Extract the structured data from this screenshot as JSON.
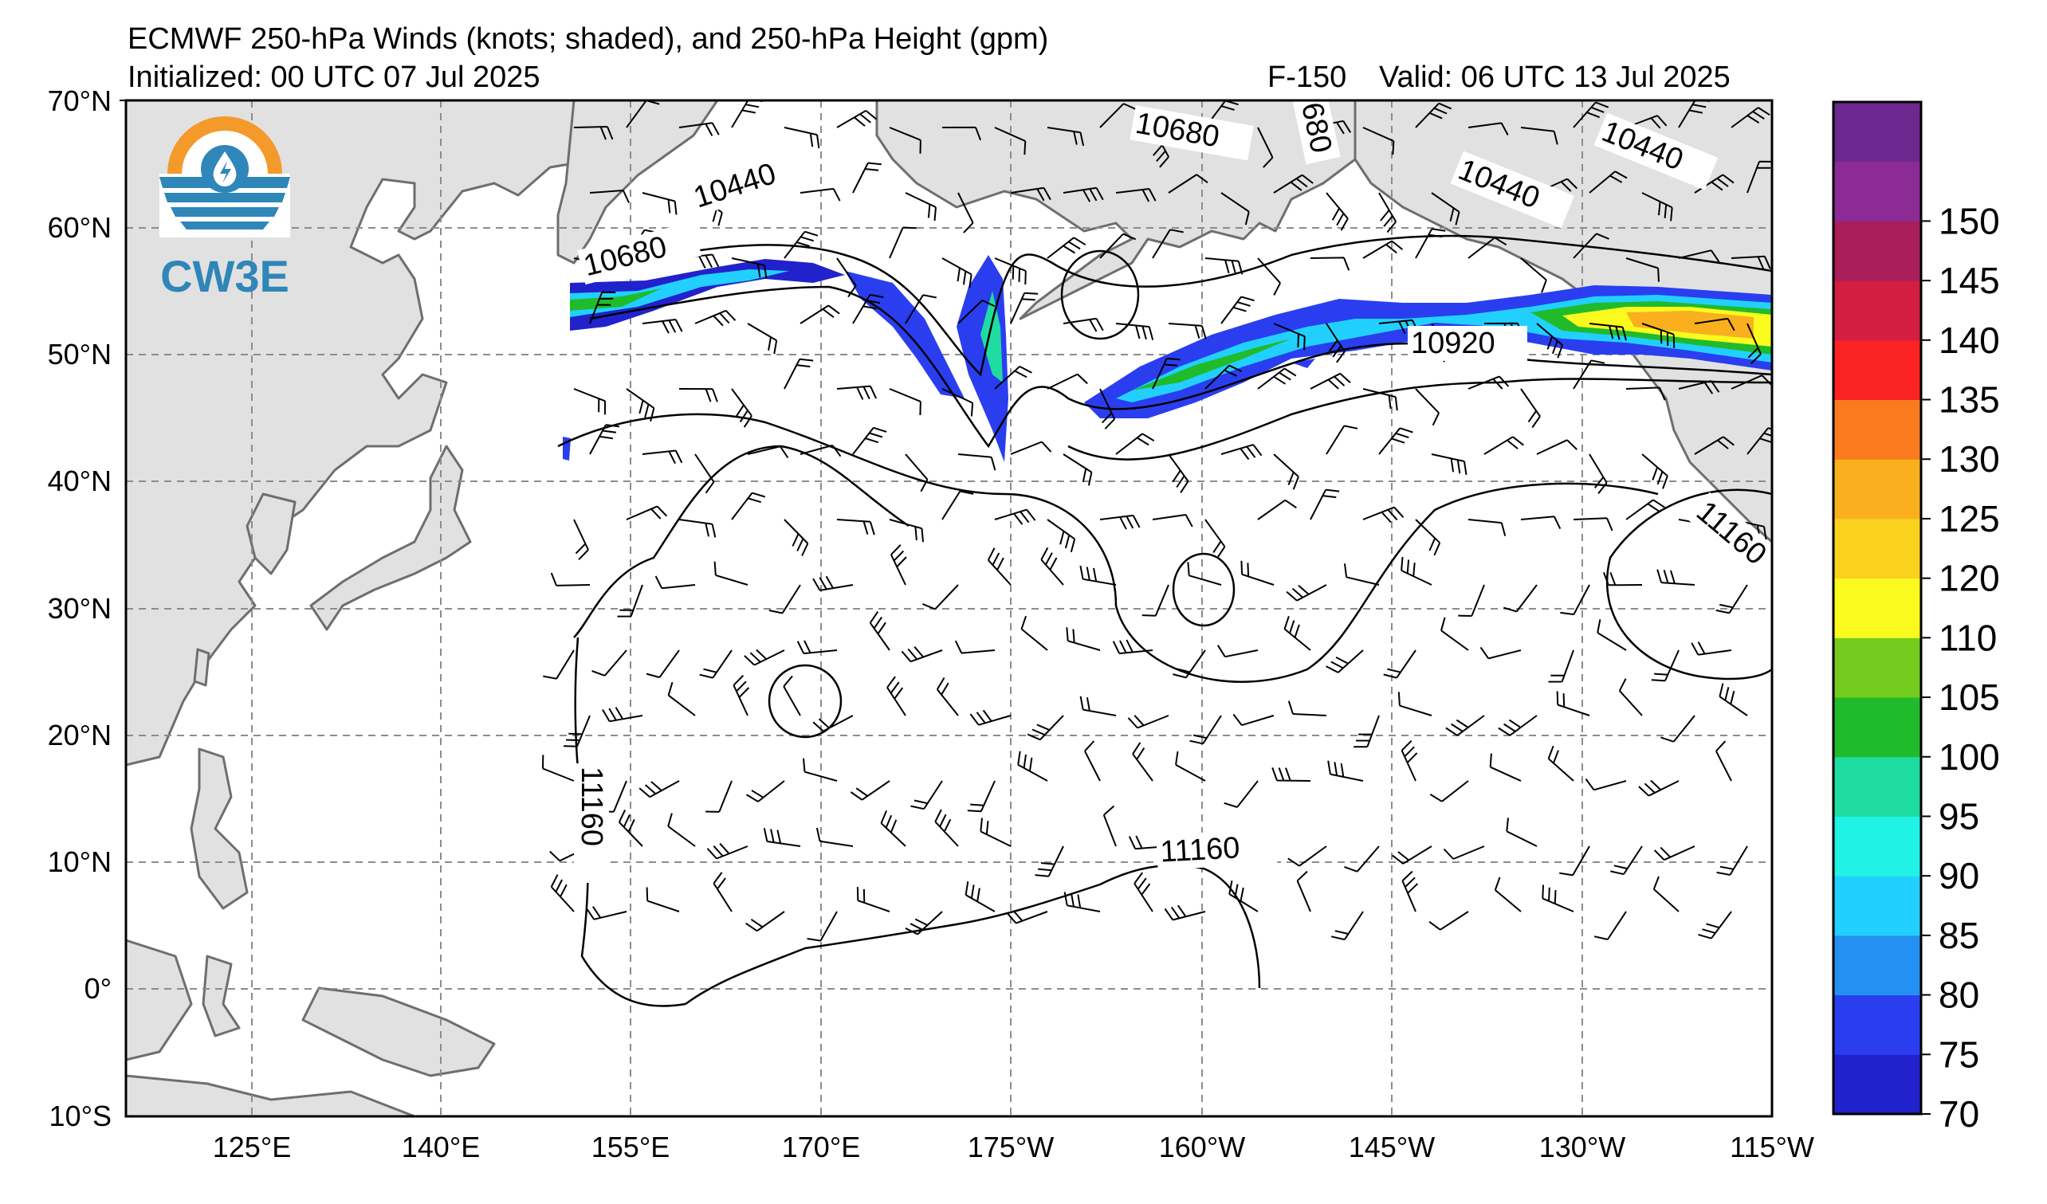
{
  "header": {
    "title": "ECMWF 250-hPa Winds (knots; shaded), and 250-hPa Height (gpm)",
    "initialized": "Initialized: 00 UTC 07 Jul 2025",
    "forecast_hour": "F-150",
    "valid": "Valid: 06 UTC 13 Jul 2025"
  },
  "logo": {
    "text": "CW3E",
    "colors": {
      "ring": "#f39a2b",
      "blue": "#2f86b8",
      "text": "#2f86b8"
    }
  },
  "map": {
    "lat_labels": [
      "70°N",
      "60°N",
      "50°N",
      "40°N",
      "30°N",
      "20°N",
      "10°N",
      "0°",
      "10°S"
    ],
    "lon_labels": [
      "125°E",
      "140°E",
      "155°E",
      "170°E",
      "175°W",
      "160°W",
      "145°W",
      "130°W",
      "115°W"
    ],
    "contour_labels": [
      {
        "text": "10440"
      },
      {
        "text": "10680"
      },
      {
        "text": "10680"
      },
      {
        "text": "680"
      },
      {
        "text": "10440"
      },
      {
        "text": "10440"
      },
      {
        "text": "10920"
      },
      {
        "text": "11160"
      },
      {
        "text": "11160"
      },
      {
        "text": "11160"
      }
    ],
    "colors": {
      "land": "#e1e1e1",
      "coast": "#6e6e6e",
      "grid": "#8c8c8c",
      "ocean": "#ffffff"
    }
  },
  "colorbar": {
    "labels": [
      "70",
      "75",
      "80",
      "85",
      "90",
      "95",
      "100",
      "105",
      "110",
      "120",
      "125",
      "130",
      "135",
      "140",
      "145",
      "150"
    ],
    "colors": [
      "#2222cc",
      "#2a3ef0",
      "#2490f2",
      "#22d0ff",
      "#21f2e6",
      "#1fdca0",
      "#20bb2a",
      "#74cc1e",
      "#fafa1e",
      "#fad21e",
      "#fab01e",
      "#fa7a1e",
      "#fa2222",
      "#d21e40",
      "#aa1e5a",
      "#8c2a96",
      "#6c288e"
    ]
  }
}
